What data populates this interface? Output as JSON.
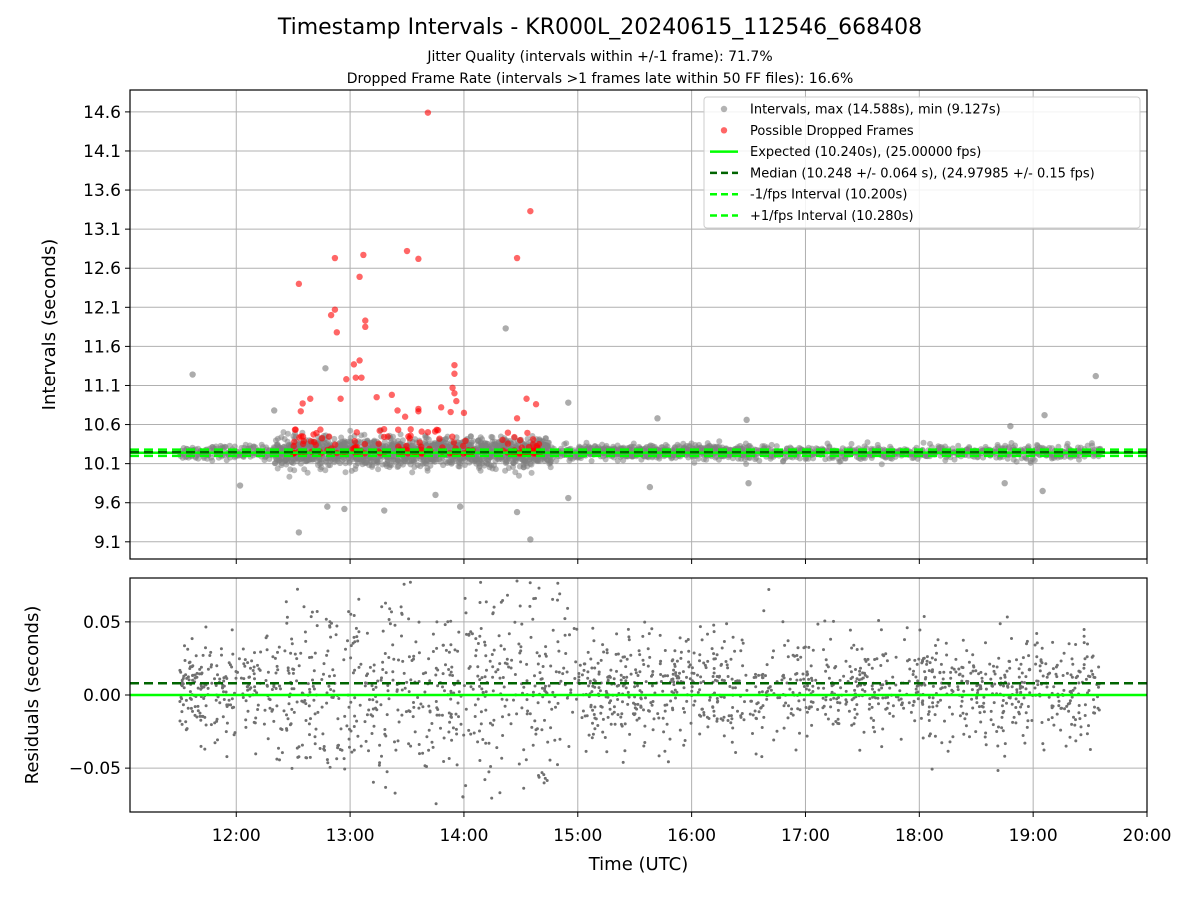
{
  "title": "Timestamp Intervals - KR000L_20240615_112546_668408",
  "subtitle_lines": [
    "Jitter Quality (intervals within +/-1 frame): 71.7%",
    "Dropped Frame Rate (intervals >1 frames late within 50 FF files): 16.6%"
  ],
  "colors": {
    "intervals": "#808080",
    "dropped": "#ff0000",
    "expected": "#00ff00",
    "median": "#006400",
    "interval_band": "#00ff00",
    "residuals": "#707070",
    "grid": "#b0b0b0"
  },
  "chart_data": [
    {
      "type": "scatter",
      "panel": "top",
      "ylabel": "Intervals (seconds)",
      "xlim": [
        "11:04",
        "20:00"
      ],
      "ylim": [
        8.88,
        14.88
      ],
      "yticks": [
        "9.1",
        "9.6",
        "10.1",
        "10.6",
        "11.1",
        "11.6",
        "12.1",
        "12.6",
        "13.1",
        "13.6",
        "14.1",
        "14.6"
      ],
      "grid": true,
      "legend_position": "upper right",
      "legend": [
        "Intervals, max (14.588s), min (9.127s)",
        "Possible Dropped Frames",
        "Expected (10.240s), (25.00000 fps)",
        "Median (10.248 +/- 0.064 s), (24.97985 +/- 0.15 fps)",
        "-1/fps Interval (10.200s)",
        "+1/fps Interval (10.280s)"
      ],
      "lines": {
        "expected": 10.24,
        "median": 10.248,
        "minus_1fps": 10.2,
        "plus_1fps": 10.28
      },
      "outlier_points": [
        {
          "x": "11:37",
          "y": 11.24
        },
        {
          "x": "19:33",
          "y": 11.22
        },
        {
          "x": "14:22",
          "y": 11.83
        },
        {
          "x": "12:33",
          "y": 9.22
        },
        {
          "x": "14:35",
          "y": 9.13
        },
        {
          "x": "13:45",
          "y": 9.7
        },
        {
          "x": "13:58",
          "y": 9.55
        },
        {
          "x": "14:28",
          "y": 9.48
        },
        {
          "x": "14:55",
          "y": 9.66
        },
        {
          "x": "12:48",
          "y": 9.55
        },
        {
          "x": "12:57",
          "y": 9.52
        },
        {
          "x": "13:18",
          "y": 9.5
        },
        {
          "x": "12:20",
          "y": 10.78
        },
        {
          "x": "12:47",
          "y": 11.32
        },
        {
          "x": "14:55",
          "y": 10.88
        },
        {
          "x": "15:42",
          "y": 10.68
        },
        {
          "x": "16:29",
          "y": 10.66
        },
        {
          "x": "18:48",
          "y": 10.58
        },
        {
          "x": "19:06",
          "y": 10.72
        },
        {
          "x": "19:05",
          "y": 9.75
        },
        {
          "x": "18:45",
          "y": 9.85
        },
        {
          "x": "16:30",
          "y": 9.85
        },
        {
          "x": "15:38",
          "y": 9.8
        },
        {
          "x": "12:02",
          "y": 9.82
        }
      ],
      "dropped_points": [
        {
          "x": "13:41",
          "y": 14.59
        },
        {
          "x": "14:35",
          "y": 13.33
        },
        {
          "x": "13:30",
          "y": 12.82
        },
        {
          "x": "13:36",
          "y": 12.72
        },
        {
          "x": "13:07",
          "y": 12.77
        },
        {
          "x": "12:52",
          "y": 12.73
        },
        {
          "x": "14:28",
          "y": 12.73
        },
        {
          "x": "12:33",
          "y": 12.4
        },
        {
          "x": "13:05",
          "y": 12.49
        },
        {
          "x": "12:52",
          "y": 12.07
        },
        {
          "x": "12:50",
          "y": 12.0
        },
        {
          "x": "13:08",
          "y": 11.93
        },
        {
          "x": "13:08",
          "y": 11.85
        },
        {
          "x": "12:53",
          "y": 11.78
        },
        {
          "x": "13:05",
          "y": 11.42
        },
        {
          "x": "13:02",
          "y": 11.37
        },
        {
          "x": "13:55",
          "y": 11.36
        },
        {
          "x": "13:55",
          "y": 11.25
        },
        {
          "x": "13:03",
          "y": 11.2
        },
        {
          "x": "13:06",
          "y": 11.2
        },
        {
          "x": "12:58",
          "y": 11.18
        },
        {
          "x": "13:54",
          "y": 11.07
        },
        {
          "x": "13:55",
          "y": 11.0
        },
        {
          "x": "12:55",
          "y": 10.93
        },
        {
          "x": "13:22",
          "y": 10.98
        },
        {
          "x": "14:33",
          "y": 10.93
        },
        {
          "x": "13:14",
          "y": 10.95
        },
        {
          "x": "12:39",
          "y": 10.93
        },
        {
          "x": "13:56",
          "y": 10.9
        },
        {
          "x": "12:35",
          "y": 10.87
        },
        {
          "x": "14:38",
          "y": 10.86
        },
        {
          "x": "13:48",
          "y": 10.82
        },
        {
          "x": "13:36",
          "y": 10.8
        },
        {
          "x": "13:25",
          "y": 10.78
        },
        {
          "x": "12:34",
          "y": 10.77
        },
        {
          "x": "13:29",
          "y": 10.7
        },
        {
          "x": "13:36",
          "y": 10.77
        },
        {
          "x": "13:53",
          "y": 10.76
        },
        {
          "x": "14:00",
          "y": 10.75
        },
        {
          "x": "14:28",
          "y": 10.68
        }
      ],
      "clusters": [
        {
          "x_range": [
            "12:30",
            "12:50"
          ],
          "y_range": [
            10.23,
            10.55
          ],
          "count": 30
        },
        {
          "x_range": [
            "12:52",
            "13:20"
          ],
          "y_range": [
            10.23,
            10.6
          ],
          "count": 26
        },
        {
          "x_range": [
            "13:25",
            "13:50"
          ],
          "y_range": [
            10.23,
            10.55
          ],
          "count": 34
        },
        {
          "x_range": [
            "13:52",
            "14:05"
          ],
          "y_range": [
            10.23,
            10.5
          ],
          "count": 18
        },
        {
          "x_range": [
            "14:20",
            "14:42"
          ],
          "y_range": [
            10.23,
            10.5
          ],
          "count": 36
        }
      ]
    },
    {
      "type": "scatter",
      "panel": "bottom",
      "xlabel": "Time (UTC)",
      "ylabel": "Residuals (seconds)",
      "xlim": [
        "11:04",
        "20:00"
      ],
      "ylim": [
        -0.08,
        0.08
      ],
      "yticks": [
        "−0.05",
        "0.00",
        "0.05"
      ],
      "xticks": [
        "12:00",
        "13:00",
        "14:00",
        "15:00",
        "16:00",
        "17:00",
        "18:00",
        "19:00",
        "20:00"
      ],
      "grid": true,
      "lines": {
        "zero": 0.0,
        "median_residual": 0.008
      },
      "series_extent": {
        "x_range": [
          "11:30",
          "19:35"
        ],
        "y_range": [
          -0.08,
          0.08
        ],
        "count": 1900
      }
    }
  ]
}
